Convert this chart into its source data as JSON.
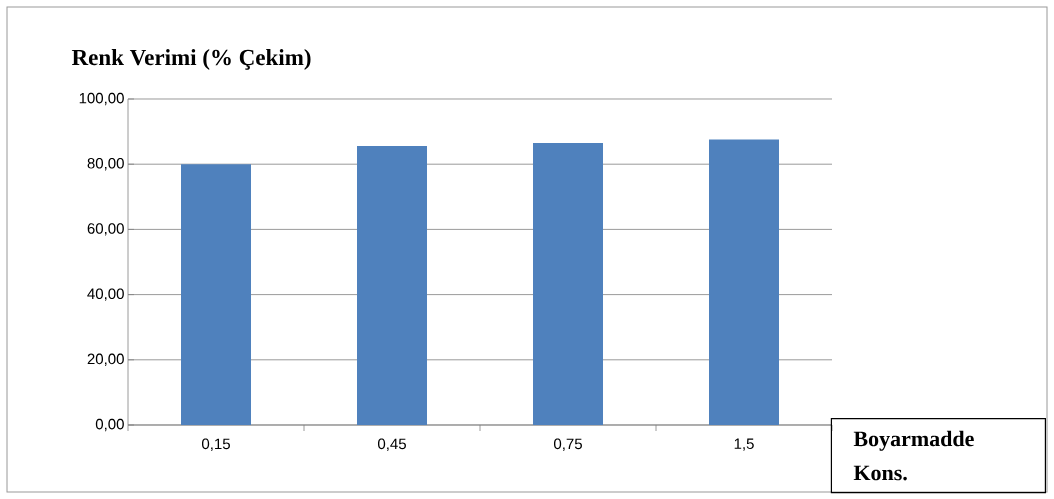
{
  "chart_data": {
    "type": "bar",
    "title": "Renk Verimi (% Çekim)",
    "xlabel": "Boyarmadde Kons.",
    "categories": [
      "0,15",
      "0,45",
      "0,75",
      "1,5"
    ],
    "values": [
      80.0,
      85.6,
      86.5,
      87.6
    ],
    "color": "#4f81bd",
    "ylim": [
      0,
      100
    ],
    "yticks": [
      {
        "value": 0,
        "label": "0,00"
      },
      {
        "value": 20,
        "label": "20,00"
      },
      {
        "value": 40,
        "label": "40,00"
      },
      {
        "value": 60,
        "label": "60,00"
      },
      {
        "value": 80,
        "label": "80,00"
      },
      {
        "value": 100,
        "label": "100,00"
      }
    ],
    "grid": "y"
  }
}
